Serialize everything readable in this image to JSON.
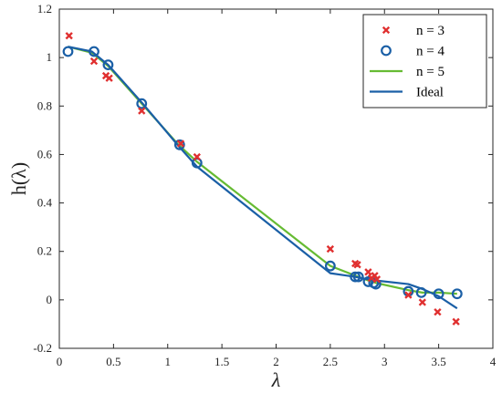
{
  "chart_data": {
    "type": "line",
    "xlabel": "λ",
    "ylabel": "h(λ)",
    "xlim": [
      0,
      4
    ],
    "ylim": [
      -0.2,
      1.2
    ],
    "xticks": [
      "0",
      "0.5",
      "1",
      "1.5",
      "2",
      "2.5",
      "3",
      "3.5",
      "4"
    ],
    "yticks": [
      "-0.2",
      "0",
      "0.2",
      "0.4",
      "0.6",
      "0.8",
      "1",
      "1.2"
    ],
    "legend_position": "top-right",
    "grid": false,
    "series": [
      {
        "name": "n = 3",
        "style": "cross-marker",
        "color": "#e03030",
        "x": [
          0.09,
          0.32,
          0.43,
          0.46,
          0.76,
          1.12,
          1.27,
          2.5,
          2.73,
          2.75,
          2.85,
          2.88,
          2.91,
          2.93,
          3.22,
          3.35,
          3.49,
          3.66
        ],
        "y": [
          1.09,
          0.985,
          0.925,
          0.915,
          0.78,
          0.645,
          0.59,
          0.21,
          0.15,
          0.145,
          0.115,
          0.09,
          0.1,
          0.085,
          0.02,
          -0.01,
          -0.05,
          -0.09
        ]
      },
      {
        "name": "n = 4",
        "style": "circle-marker",
        "color": "#1a5fa6",
        "x": [
          0.08,
          0.32,
          0.45,
          0.76,
          1.11,
          1.27,
          2.5,
          2.73,
          2.76,
          2.85,
          2.9,
          2.92,
          3.22,
          3.34,
          3.5,
          3.67
        ],
        "y": [
          1.025,
          1.025,
          0.97,
          0.81,
          0.64,
          0.565,
          0.14,
          0.095,
          0.095,
          0.075,
          0.07,
          0.065,
          0.035,
          0.03,
          0.025,
          0.025
        ]
      },
      {
        "name": "n = 5",
        "style": "line",
        "color": "#66bb33",
        "x": [
          0.08,
          0.3,
          0.45,
          0.76,
          1.1,
          1.27,
          2.5,
          2.73,
          2.85,
          2.92,
          3.22,
          3.35,
          3.5,
          3.67
        ],
        "y": [
          1.045,
          1.02,
          0.965,
          0.81,
          0.64,
          0.57,
          0.14,
          0.1,
          0.08,
          0.07,
          0.04,
          0.03,
          0.03,
          0.025
        ]
      },
      {
        "name": "Ideal",
        "style": "line",
        "color": "#1a5fa6",
        "x": [
          0.08,
          0.3,
          0.45,
          0.76,
          1.1,
          1.27,
          2.5,
          2.73,
          2.85,
          2.92,
          3.22,
          3.35,
          3.5,
          3.67
        ],
        "y": [
          1.045,
          1.025,
          0.97,
          0.815,
          0.635,
          0.55,
          0.11,
          0.095,
          0.085,
          0.08,
          0.065,
          0.045,
          0.015,
          -0.035
        ]
      }
    ]
  }
}
